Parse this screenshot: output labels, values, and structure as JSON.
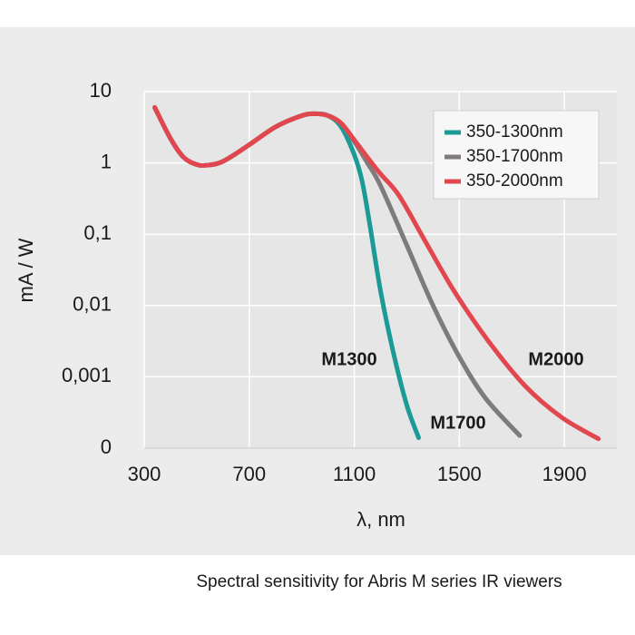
{
  "chart_data": {
    "type": "line",
    "y_label": "mA / W",
    "x_label": "λ, nm",
    "caption": "Spectral sensitivity for Abris M series IR viewers",
    "log_y": true,
    "grid": true,
    "legend": "upper right",
    "xlim": [
      300,
      2100
    ],
    "xticks": [
      300,
      700,
      1100,
      1500,
      1900
    ],
    "ylim": [
      0.0001,
      10
    ],
    "yticks": [
      {
        "value": 0.0001,
        "label": "0"
      },
      {
        "value": 0.001,
        "label": "0,001"
      },
      {
        "value": 0.01,
        "label": "0,01"
      },
      {
        "value": 0.1,
        "label": "0,1"
      },
      1,
      10
    ],
    "series": [
      {
        "name": "350-1300nm",
        "color": "#1c9a95",
        "x": [
          340,
          400,
          450,
          500,
          540,
          600,
          700,
          800,
          900,
          950,
          1000,
          1050,
          1100,
          1130,
          1160,
          1200,
          1250,
          1300,
          1345
        ],
        "values": [
          6,
          2.2,
          1.2,
          0.95,
          0.93,
          1.05,
          1.8,
          3.2,
          4.6,
          4.9,
          4.6,
          3.2,
          1.3,
          0.55,
          0.13,
          0.016,
          0.0021,
          0.0004,
          0.00014
        ]
      },
      {
        "name": "350-1700nm",
        "color": "#7f7b7b",
        "x": [
          340,
          400,
          450,
          500,
          540,
          600,
          700,
          800,
          900,
          950,
          1000,
          1050,
          1100,
          1150,
          1200,
          1300,
          1400,
          1500,
          1600,
          1730
        ],
        "values": [
          6,
          2.2,
          1.2,
          0.95,
          0.93,
          1.05,
          1.8,
          3.2,
          4.6,
          4.9,
          4.6,
          3.6,
          2.0,
          1.0,
          0.48,
          0.07,
          0.01,
          0.0019,
          0.0005,
          0.00015
        ]
      },
      {
        "name": "350-2000nm",
        "color": "#e2474f",
        "x": [
          340,
          400,
          450,
          500,
          540,
          600,
          700,
          800,
          900,
          950,
          1000,
          1050,
          1100,
          1150,
          1200,
          1270,
          1370,
          1480,
          1610,
          1750,
          1890,
          2030
        ],
        "values": [
          6,
          2.2,
          1.2,
          0.95,
          0.93,
          1.05,
          1.8,
          3.2,
          4.6,
          4.9,
          4.6,
          3.6,
          2.1,
          1.2,
          0.7,
          0.35,
          0.08,
          0.016,
          0.0032,
          0.00075,
          0.00027,
          0.000135
        ]
      }
    ],
    "annotations": [
      "M1300",
      "M1700",
      "M2000"
    ]
  }
}
